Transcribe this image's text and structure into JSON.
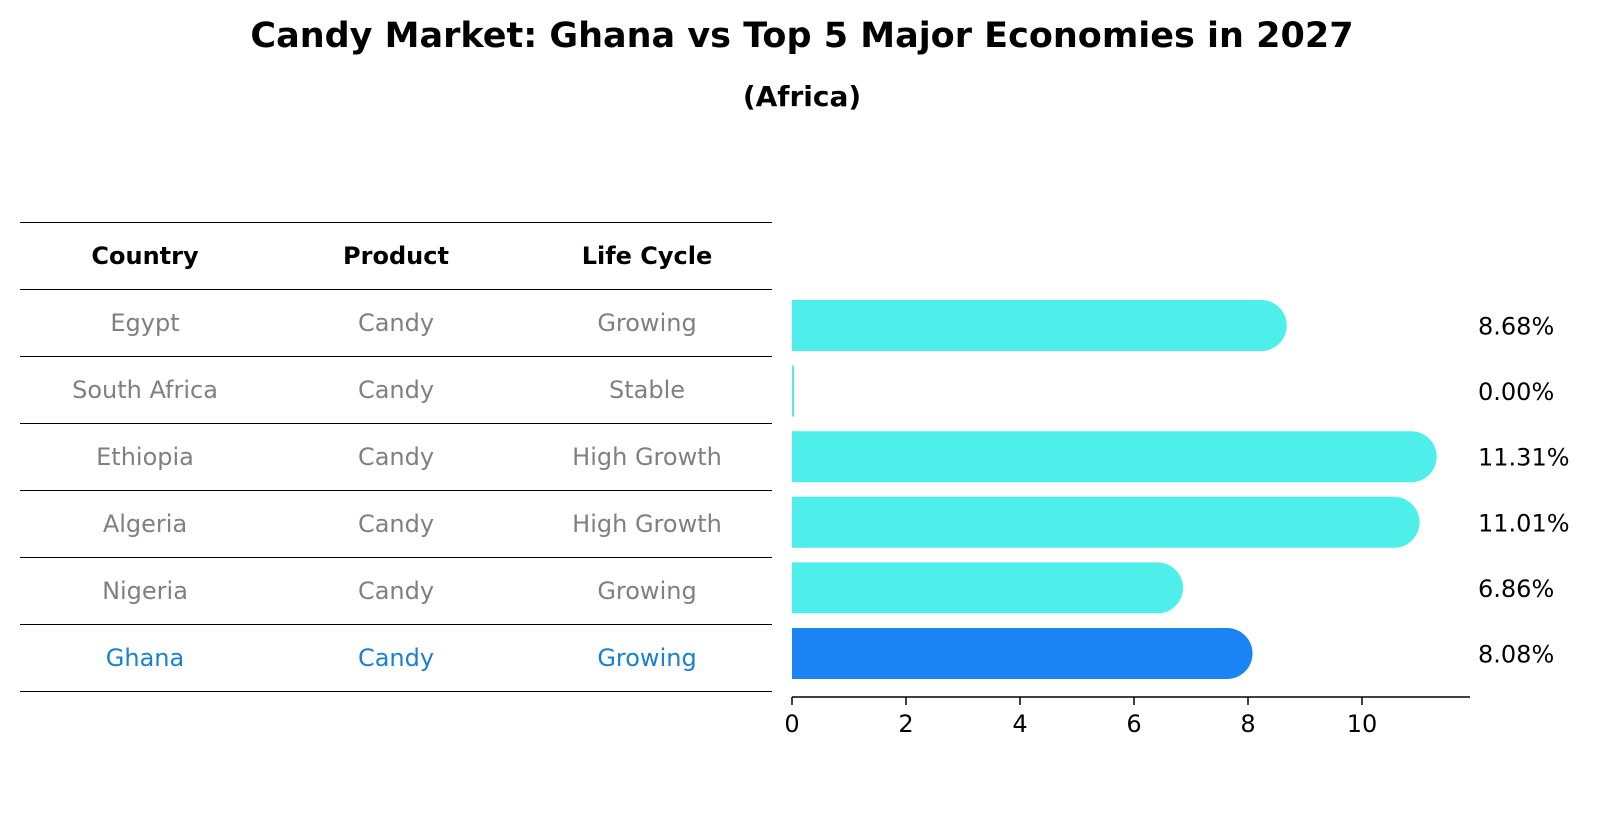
{
  "title": "Candy Market: Ghana vs Top 5 Major Economies in 2027",
  "subtitle": "(Africa)",
  "table": {
    "headers": [
      "Country",
      "Product",
      "Life Cycle"
    ],
    "rows": [
      {
        "country": "Egypt",
        "product": "Candy",
        "life_cycle": "Growing"
      },
      {
        "country": "South Africa",
        "product": "Candy",
        "life_cycle": "Stable"
      },
      {
        "country": "Ethiopia",
        "product": "Candy",
        "life_cycle": "High Growth"
      },
      {
        "country": "Algeria",
        "product": "Candy",
        "life_cycle": "High Growth"
      },
      {
        "country": "Nigeria",
        "product": "Candy",
        "life_cycle": "Growing"
      },
      {
        "country": "Ghana",
        "product": "Candy",
        "life_cycle": "Growing"
      }
    ]
  },
  "chart_data": {
    "type": "bar",
    "orientation": "horizontal",
    "title": "Candy Market: Ghana vs Top 5 Major Economies in 2027",
    "subtitle": "(Africa)",
    "categories": [
      "Egypt",
      "South Africa",
      "Ethiopia",
      "Algeria",
      "Nigeria",
      "Ghana"
    ],
    "values": [
      8.68,
      0.0,
      11.31,
      11.01,
      6.86,
      8.08
    ],
    "value_labels": [
      "8.68%",
      "0.00%",
      "11.31%",
      "11.01%",
      "6.86%",
      "8.08%"
    ],
    "highlight": "Ghana",
    "xlim": [
      0,
      11.9
    ],
    "xticks": [
      0,
      2,
      4,
      6,
      8,
      10
    ],
    "xlabel": "",
    "ylabel": "",
    "colors": {
      "default": "#4eeeea",
      "highlight": "#1a84f5",
      "highlight_text": "#1a80d0",
      "muted_text": "#808080"
    }
  }
}
